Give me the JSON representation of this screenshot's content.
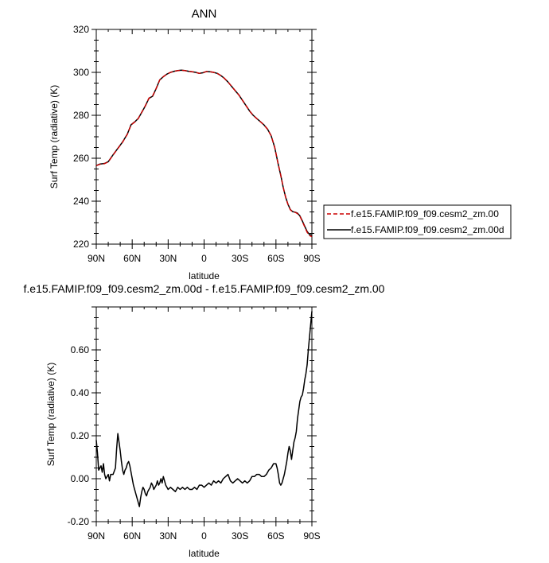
{
  "chart_data": [
    {
      "type": "line",
      "title": "ANN",
      "xlabel": "latitude",
      "ylabel": "Surf Temp (radiative) (K)",
      "xlim": [
        90,
        -90
      ],
      "ylim": [
        220,
        320
      ],
      "x_ticks": [
        {
          "value": 90,
          "label": "90N"
        },
        {
          "value": 60,
          "label": "60N"
        },
        {
          "value": 30,
          "label": "30N"
        },
        {
          "value": 0,
          "label": "0"
        },
        {
          "value": -30,
          "label": "30S"
        },
        {
          "value": -60,
          "label": "60S"
        },
        {
          "value": -90,
          "label": "90S"
        }
      ],
      "y_ticks": [
        {
          "value": 220,
          "label": "220"
        },
        {
          "value": 240,
          "label": "240"
        },
        {
          "value": 260,
          "label": "260"
        },
        {
          "value": 280,
          "label": "280"
        },
        {
          "value": 300,
          "label": "300"
        },
        {
          "value": 320,
          "label": "320"
        }
      ],
      "legend": {
        "placement": "right",
        "entries": [
          {
            "name": "f.e15.FAMIP.f09_f09.cesm2_zm.00",
            "color": "#cc0000",
            "dash": "dashed"
          },
          {
            "name": "f.e15.FAMIP.f09_f09.cesm2_zm.00d",
            "color": "#000000",
            "dash": "solid"
          }
        ]
      },
      "series": [
        {
          "name": "f.e15.FAMIP.f09_f09.cesm2_zm.00",
          "color": "#cc0000",
          "x": [
            90,
            87,
            83,
            80,
            76,
            72,
            68,
            64,
            61,
            58,
            55,
            52,
            49,
            46,
            43,
            40,
            37,
            34,
            31,
            28,
            25,
            22,
            19,
            16,
            13,
            10,
            7,
            4,
            1,
            -2,
            -5,
            -8,
            -11,
            -14,
            -17,
            -20,
            -23,
            -26,
            -29,
            -32,
            -35,
            -38,
            -41,
            -44,
            -47,
            -50,
            -53,
            -56,
            -59,
            -62,
            -64,
            -66,
            -68,
            -70,
            -72,
            -74,
            -76,
            -78,
            -80,
            -82,
            -84,
            -86,
            -88,
            -90
          ],
          "y": [
            256.5,
            257.2,
            257.5,
            258.3,
            261.5,
            264.5,
            267.5,
            271.2,
            275.5,
            276.8,
            278.5,
            281.5,
            284.5,
            288.0,
            289.0,
            292.5,
            296.5,
            298.0,
            299.2,
            300.0,
            300.5,
            300.8,
            301.0,
            300.8,
            300.5,
            300.3,
            300.0,
            299.5,
            299.8,
            300.4,
            300.3,
            300.0,
            299.5,
            298.5,
            297.2,
            295.5,
            293.5,
            291.5,
            289.5,
            287.0,
            284.5,
            282.0,
            280.0,
            278.5,
            277.0,
            275.5,
            273.5,
            270.5,
            265.0,
            257.0,
            252.0,
            246.5,
            242.0,
            238.5,
            236.0,
            235.0,
            234.8,
            234.2,
            233.0,
            230.5,
            228.0,
            225.5,
            224.0,
            223.5
          ]
        },
        {
          "name": "f.e15.FAMIP.f09_f09.cesm2_zm.00d",
          "color": "#000000",
          "x": [
            90,
            87,
            83,
            80,
            76,
            72,
            68,
            64,
            61,
            58,
            55,
            52,
            49,
            46,
            43,
            40,
            37,
            34,
            31,
            28,
            25,
            22,
            19,
            16,
            13,
            10,
            7,
            4,
            1,
            -2,
            -5,
            -8,
            -11,
            -14,
            -17,
            -20,
            -23,
            -26,
            -29,
            -32,
            -35,
            -38,
            -41,
            -44,
            -47,
            -50,
            -53,
            -56,
            -59,
            -62,
            -64,
            -66,
            -68,
            -70,
            -72,
            -74,
            -76,
            -78,
            -80,
            -82,
            -84,
            -86,
            -88,
            -90
          ],
          "y": [
            256.6,
            257.3,
            257.6,
            258.4,
            261.6,
            264.6,
            267.6,
            271.3,
            275.6,
            276.9,
            278.5,
            281.4,
            284.4,
            287.9,
            288.9,
            292.5,
            296.5,
            298.0,
            299.2,
            300.0,
            300.5,
            300.8,
            301.0,
            300.8,
            300.5,
            300.3,
            300.0,
            299.5,
            299.8,
            300.4,
            300.3,
            300.0,
            299.5,
            298.5,
            297.2,
            295.5,
            293.5,
            291.5,
            289.5,
            287.0,
            284.5,
            282.0,
            280.0,
            278.5,
            277.0,
            275.5,
            273.5,
            270.5,
            265.0,
            257.0,
            252.0,
            246.5,
            242.0,
            238.6,
            236.1,
            235.1,
            234.9,
            234.4,
            233.2,
            230.8,
            228.3,
            225.9,
            224.5,
            224.2
          ]
        }
      ]
    },
    {
      "type": "line",
      "title": "f.e15.FAMIP.f09_f09.cesm2_zm.00d - f.e15.FAMIP.f09_f09.cesm2_zm.00",
      "xlabel": "latitude",
      "ylabel": "Surf Temp (radiative) (K)",
      "xlim": [
        90,
        -90
      ],
      "ylim": [
        -0.2,
        0.8
      ],
      "x_ticks": [
        {
          "value": 90,
          "label": "90N"
        },
        {
          "value": 60,
          "label": "60N"
        },
        {
          "value": 30,
          "label": "30N"
        },
        {
          "value": 0,
          "label": "0"
        },
        {
          "value": -30,
          "label": "30S"
        },
        {
          "value": -60,
          "label": "60S"
        },
        {
          "value": -90,
          "label": "90S"
        }
      ],
      "y_ticks": [
        {
          "value": -0.2,
          "label": "-0.20"
        },
        {
          "value": 0,
          "label": "0.00"
        },
        {
          "value": 0.2,
          "label": "0.20"
        },
        {
          "value": 0.4,
          "label": "0.40"
        },
        {
          "value": 0.6,
          "label": "0.60"
        }
      ],
      "series": [
        {
          "color": "#000000",
          "x": [
            90,
            89,
            88,
            86,
            85,
            84,
            83,
            82,
            81,
            80,
            79,
            78,
            76,
            74,
            73,
            72,
            71,
            70,
            69,
            68,
            67,
            66,
            65,
            64,
            63,
            62,
            61,
            60,
            59,
            58,
            57,
            56,
            55,
            54,
            53,
            52,
            51,
            50,
            49,
            48,
            47,
            46,
            45,
            44,
            43,
            42,
            41,
            40,
            39,
            38,
            37,
            36,
            35,
            34,
            33,
            32,
            31,
            30,
            28,
            26,
            24,
            22,
            20,
            18,
            16,
            14,
            12,
            10,
            8,
            6,
            4,
            2,
            0,
            -2,
            -4,
            -6,
            -8,
            -10,
            -12,
            -14,
            -16,
            -18,
            -20,
            -22,
            -24,
            -26,
            -28,
            -30,
            -32,
            -34,
            -36,
            -38,
            -40,
            -42,
            -44,
            -46,
            -48,
            -50,
            -52,
            -54,
            -56,
            -58,
            -60,
            -61,
            -62,
            -63,
            -64,
            -65,
            -66,
            -67,
            -68,
            -69,
            -70,
            -71,
            -72,
            -73,
            -74,
            -75,
            -76,
            -77,
            -78,
            -79,
            -80,
            -81,
            -82,
            -83,
            -84,
            -85,
            -86,
            -87,
            -88,
            -89,
            -90
          ],
          "y": [
            0.18,
            0.12,
            0.04,
            0.06,
            0.03,
            0.07,
            0.02,
            0.0,
            0.01,
            0.02,
            -0.01,
            0.02,
            0.02,
            0.05,
            0.14,
            0.21,
            0.17,
            0.13,
            0.08,
            0.04,
            0.02,
            0.04,
            0.05,
            0.07,
            0.08,
            0.06,
            0.03,
            0.0,
            -0.03,
            -0.05,
            -0.07,
            -0.09,
            -0.11,
            -0.13,
            -0.09,
            -0.06,
            -0.04,
            -0.05,
            -0.07,
            -0.08,
            -0.06,
            -0.05,
            -0.04,
            -0.02,
            -0.03,
            -0.05,
            -0.04,
            -0.03,
            -0.01,
            -0.03,
            -0.02,
            0.0,
            -0.02,
            0.01,
            -0.01,
            -0.03,
            -0.04,
            -0.05,
            -0.04,
            -0.05,
            -0.06,
            -0.04,
            -0.05,
            -0.04,
            -0.05,
            -0.04,
            -0.05,
            -0.05,
            -0.04,
            -0.05,
            -0.03,
            -0.03,
            -0.04,
            -0.03,
            -0.02,
            -0.03,
            -0.01,
            -0.02,
            -0.01,
            -0.02,
            0.0,
            0.01,
            0.02,
            -0.01,
            -0.02,
            -0.01,
            0.0,
            -0.01,
            -0.02,
            -0.01,
            -0.02,
            -0.01,
            0.01,
            0.01,
            0.02,
            0.02,
            0.01,
            0.01,
            0.02,
            0.04,
            0.05,
            0.07,
            0.07,
            0.05,
            0.02,
            -0.02,
            -0.03,
            -0.02,
            0.0,
            0.02,
            0.05,
            0.08,
            0.12,
            0.15,
            0.13,
            0.09,
            0.13,
            0.17,
            0.19,
            0.22,
            0.28,
            0.32,
            0.36,
            0.38,
            0.39,
            0.42,
            0.46,
            0.49,
            0.53,
            0.6,
            0.66,
            0.72,
            0.78
          ]
        }
      ]
    }
  ]
}
